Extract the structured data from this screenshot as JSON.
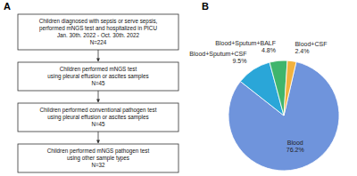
{
  "flowchart": {
    "label": "A",
    "steps": [
      {
        "lines": [
          "Children diagnosed with sepsis or serve sepsis,",
          "performed mNGS test and hospitalized in PICU",
          "Jan. 30th. 2022 - Oct. 30th. 2022"
        ],
        "n": "N=224"
      },
      {
        "lines": [
          "Children performed mNGS test",
          "using pleural effusion or ascites samples"
        ],
        "n": "N=45"
      },
      {
        "lines": [
          "Children performed conventional pathogen test",
          "using pleural effusion or ascites samples"
        ],
        "n": "N=45"
      },
      {
        "lines": [
          "Children performed mNGS pathogen test",
          "using other sample types"
        ],
        "n": "N=32"
      }
    ]
  },
  "chart_data": {
    "type": "pie",
    "title": "B",
    "categories": [
      "Blood",
      "Blood+Sputum+CSF",
      "Blood+Sputum+BALF",
      "Blood+CSF"
    ],
    "values": [
      76.2,
      9.5,
      4.8,
      2.4
    ],
    "value_labels": [
      "76.2%",
      "9.5%",
      "4.8%",
      "2.4%"
    ],
    "colors": [
      "#6f94dc",
      "#2aa6d8",
      "#3fb56c",
      "#f2b23e"
    ],
    "data_labels": true
  }
}
